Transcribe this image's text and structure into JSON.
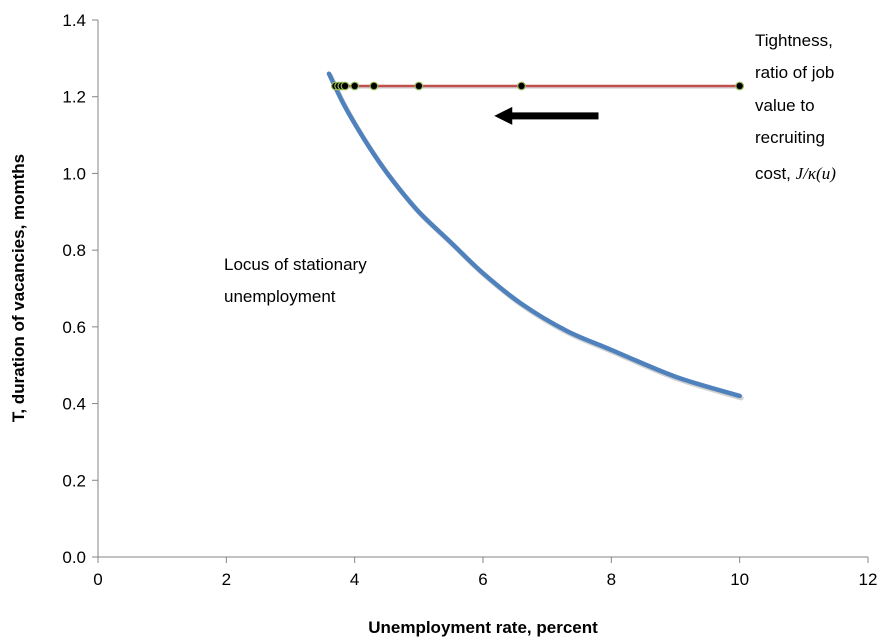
{
  "chart_data": {
    "type": "line",
    "xlabel": "Unemployment rate, percent",
    "ylabel": "T, duration of vacancies, momths",
    "xlim": [
      0,
      12
    ],
    "ylim": [
      0,
      1.4
    ],
    "x_ticks": [
      "0",
      "2",
      "4",
      "6",
      "8",
      "10",
      "12"
    ],
    "y_ticks": [
      "0.0",
      "0.2",
      "0.4",
      "0.6",
      "0.8",
      "1.0",
      "1.2",
      "1.4"
    ],
    "grid": false,
    "legend": "none",
    "series": [
      {
        "color": "#4f81bd",
        "x": [
          3.6,
          3.8,
          4.0,
          4.3,
          4.6,
          5.0,
          5.5,
          6.0,
          6.6,
          7.3,
          8.0,
          9.0,
          10.0
        ],
        "y": [
          1.26,
          1.19,
          1.13,
          1.05,
          0.98,
          0.9,
          0.82,
          0.74,
          0.66,
          0.59,
          0.54,
          0.47,
          0.42
        ]
      },
      {
        "color": "#c0504d",
        "marker_color": "#000000",
        "marker_edge": "#9bbb59",
        "x": [
          3.7,
          3.75,
          3.8,
          3.85,
          4.0,
          4.3,
          5.0,
          6.6,
          10.0
        ],
        "y": [
          1.228,
          1.228,
          1.228,
          1.228,
          1.228,
          1.228,
          1.228,
          1.228,
          1.228
        ]
      }
    ],
    "arrow": {
      "direction": "left",
      "from_x": 7.8,
      "to_x": 6.3,
      "y": 1.15
    },
    "annotations": {
      "locus_line1": "Locus of stationary",
      "locus_line2": "unemployment",
      "tight_line1": "Tightness,",
      "tight_line2": "ratio of job",
      "tight_line3": "value to",
      "tight_line4": "recruiting",
      "tight_line5_prefix": "cost, ",
      "tight_math": "J/κ(u)"
    }
  }
}
